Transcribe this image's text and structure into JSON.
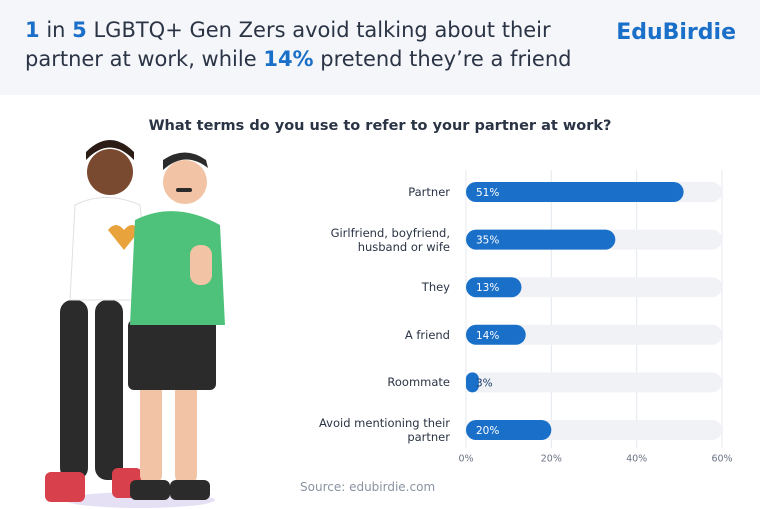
{
  "chart_data": {
    "type": "bar",
    "orientation": "horizontal",
    "title": [
      "1",
      "in",
      "5",
      "LGBTQ+ Gen Zers avoid talking about their partner at work, while",
      "14%",
      "pretend they’re a friend"
    ],
    "brand": "EduBirdie",
    "subtitle": "What terms do you use to refer to your partner at work?",
    "source": "Source: edubirdie.com",
    "categories": [
      "Partner",
      "Girlfriend, boyfriend, husband or wife",
      "They",
      "A friend",
      "Roommate",
      "Avoid mentioning their partner"
    ],
    "values": [
      51,
      35,
      13,
      14,
      3,
      20
    ],
    "value_labels": [
      "51%",
      "35%",
      "13%",
      "14%",
      "3%",
      "20%"
    ],
    "color": "#1a6fc9",
    "xlim": [
      0,
      60
    ],
    "xticks": [
      {
        "value": 0,
        "label": "0%"
      },
      {
        "value": 20,
        "label": "20%"
      },
      {
        "value": 40,
        "label": "40%"
      },
      {
        "value": 60,
        "label": "60%"
      }
    ],
    "grid": true
  }
}
